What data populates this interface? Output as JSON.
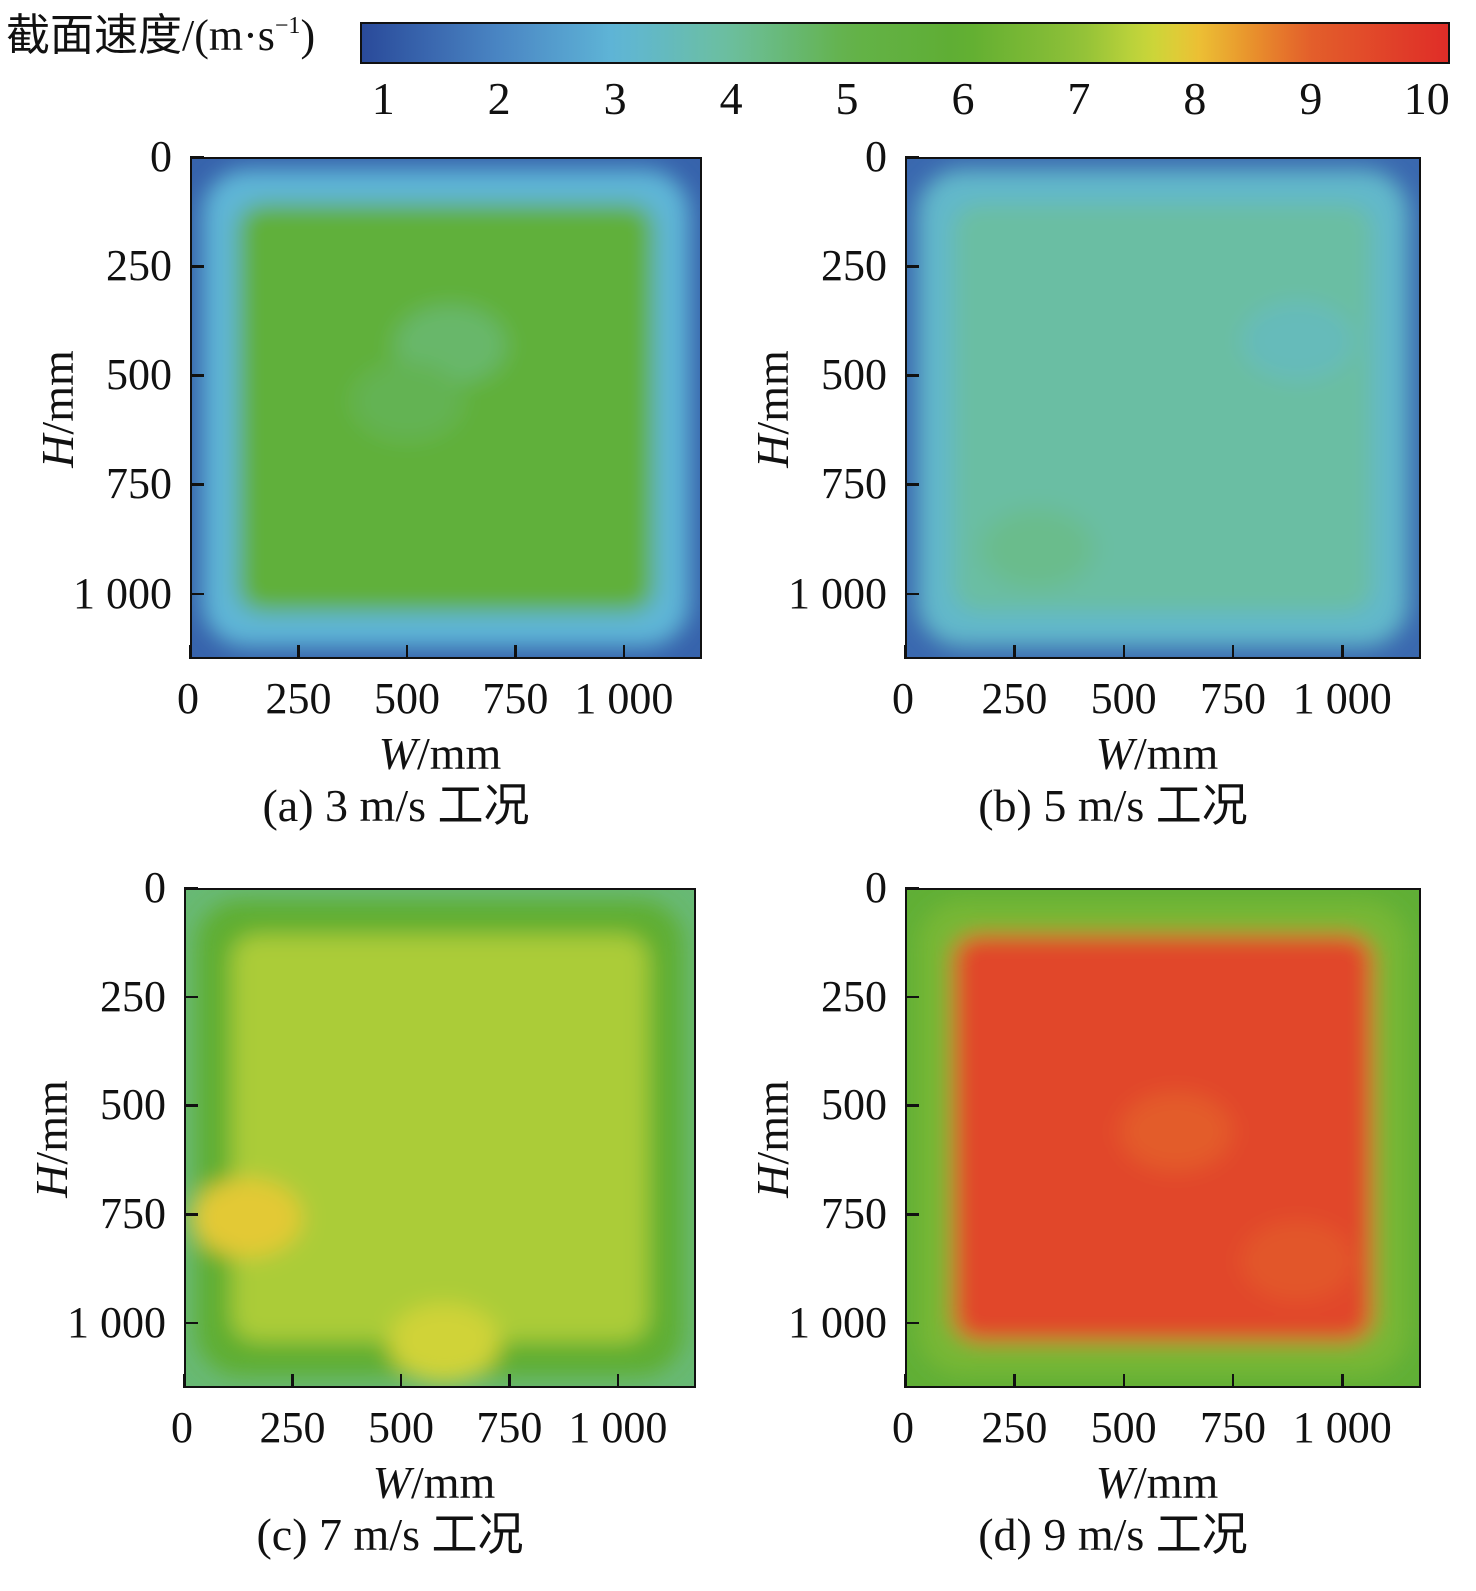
{
  "colorbar": {
    "title_main": "截面速度/(m·s",
    "title_sup": "−1",
    "title_end": ")",
    "range": [
      0.8,
      10.2
    ],
    "ticks": [
      "1",
      "2",
      "3",
      "4",
      "5",
      "6",
      "7",
      "8",
      "9",
      "10"
    ],
    "stops": [
      {
        "v": 0.8,
        "color": "#2a4a9a"
      },
      {
        "v": 2.0,
        "color": "#4a86c4"
      },
      {
        "v": 3.0,
        "color": "#5fb6d7"
      },
      {
        "v": 4.0,
        "color": "#6cbf9d"
      },
      {
        "v": 5.0,
        "color": "#63b24a"
      },
      {
        "v": 6.0,
        "color": "#5fae31"
      },
      {
        "v": 7.0,
        "color": "#8fc038"
      },
      {
        "v": 7.6,
        "color": "#c7d83a"
      },
      {
        "v": 8.0,
        "color": "#ecc435"
      },
      {
        "v": 8.5,
        "color": "#e8922c"
      },
      {
        "v": 9.0,
        "color": "#e35f2b"
      },
      {
        "v": 10.2,
        "color": "#df2d28"
      }
    ]
  },
  "chart_data": [
    {
      "type": "heatmap",
      "caption": "(a) 3 m/s 工况",
      "xlabel_var": "W",
      "xlabel_unit": "/mm",
      "ylabel_var": "H",
      "ylabel_unit": "/mm",
      "xlim": [
        0,
        1180
      ],
      "ylim": [
        0,
        1150
      ],
      "xticks": [
        "0",
        "250",
        "500",
        "750",
        "1 000"
      ],
      "yticks": [
        "0",
        "250",
        "500",
        "750",
        "1 000"
      ],
      "core_value": 5.6,
      "edge_value": 3.0,
      "corner_value": 1.3,
      "blobs": [
        {
          "x": 600,
          "y": 430,
          "value": 4.6
        },
        {
          "x": 500,
          "y": 560,
          "value": 4.9
        }
      ]
    },
    {
      "type": "heatmap",
      "caption": "(b) 5 m/s 工况",
      "xlabel_var": "W",
      "xlabel_unit": "/mm",
      "ylabel_var": "H",
      "ylabel_unit": "/mm",
      "xlim": [
        0,
        1180
      ],
      "ylim": [
        0,
        1150
      ],
      "xticks": [
        "0",
        "250",
        "500",
        "750",
        "1 000"
      ],
      "yticks": [
        "0",
        "250",
        "500",
        "750",
        "1 000"
      ],
      "core_value": 3.9,
      "edge_value": 3.2,
      "corner_value": 1.4,
      "blobs": [
        {
          "x": 300,
          "y": 900,
          "value": 4.2
        },
        {
          "x": 900,
          "y": 420,
          "value": 3.5
        }
      ]
    },
    {
      "type": "heatmap",
      "caption": "(c) 7 m/s 工况",
      "xlabel_var": "W",
      "xlabel_unit": "/mm",
      "ylabel_var": "H",
      "ylabel_unit": "/mm",
      "xlim": [
        0,
        1180
      ],
      "ylim": [
        0,
        1150
      ],
      "xticks": [
        "0",
        "250",
        "500",
        "750",
        "1 000"
      ],
      "yticks": [
        "0",
        "250",
        "500",
        "750",
        "1 000"
      ],
      "core_value": 7.3,
      "edge_value": 6.0,
      "corner_value": 4.5,
      "blobs": [
        {
          "x": 140,
          "y": 760,
          "value": 7.9
        },
        {
          "x": 600,
          "y": 1050,
          "value": 7.7
        }
      ]
    },
    {
      "type": "heatmap",
      "caption": "(d) 9 m/s 工况",
      "xlabel_var": "W",
      "xlabel_unit": "/mm",
      "ylabel_var": "H",
      "ylabel_unit": "/mm",
      "xlim": [
        0,
        1180
      ],
      "ylim": [
        0,
        1150
      ],
      "xticks": [
        "0",
        "250",
        "500",
        "750",
        "1 000"
      ],
      "yticks": [
        "0",
        "250",
        "500",
        "750",
        "1 000"
      ],
      "core_value": 9.6,
      "edge_value": 6.5,
      "corner_value": 5.8,
      "blobs": [
        {
          "x": 620,
          "y": 560,
          "value": 9.1
        },
        {
          "x": 900,
          "y": 860,
          "value": 9.2
        }
      ]
    }
  ]
}
